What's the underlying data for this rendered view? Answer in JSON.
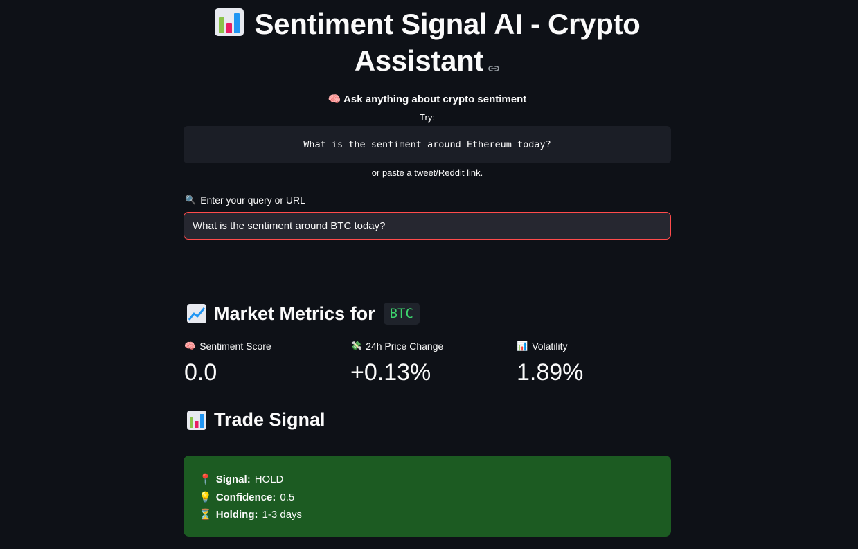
{
  "header": {
    "title": "Sentiment Signal AI - Crypto Assistant",
    "title_icon": "bar-chart-emoji",
    "anchor_icon": "link-icon"
  },
  "prompt": {
    "subhead": "Ask anything about crypto sentiment",
    "subhead_icon": "brain-emoji",
    "try_label": "Try:",
    "example_query": "What is the sentiment around Ethereum today?",
    "or_text": "or paste a tweet/Reddit link."
  },
  "query": {
    "label": "Enter your query or URL",
    "label_icon": "magnifier-emoji",
    "value": "What is the sentiment around BTC today?"
  },
  "metrics": {
    "heading": "Market Metrics for",
    "heading_icon": "chart-increasing-emoji",
    "ticker": "BTC",
    "items": [
      {
        "label": "Sentiment Score",
        "icon": "brain-emoji",
        "value": "0.0"
      },
      {
        "label": "24h Price Change",
        "icon": "money-wings-emoji",
        "value": "+0.13%"
      },
      {
        "label": "Volatility",
        "icon": "bar-chart-emoji",
        "value": "1.89%"
      }
    ]
  },
  "signal": {
    "heading": "Trade Signal",
    "heading_icon": "bar-chart-emoji",
    "rows": [
      {
        "icon": "pin-emoji",
        "label": "Signal:",
        "value": "HOLD"
      },
      {
        "icon": "bulb-emoji",
        "label": "Confidence:",
        "value": "0.5"
      },
      {
        "icon": "hourglass-emoji",
        "label": "Holding:",
        "value": "1-3 days"
      }
    ]
  },
  "colors": {
    "background": "#0e1117",
    "input_border": "#ff4b4b",
    "ticker_text": "#3dd56d",
    "signal_bg": "#1c5b22"
  }
}
